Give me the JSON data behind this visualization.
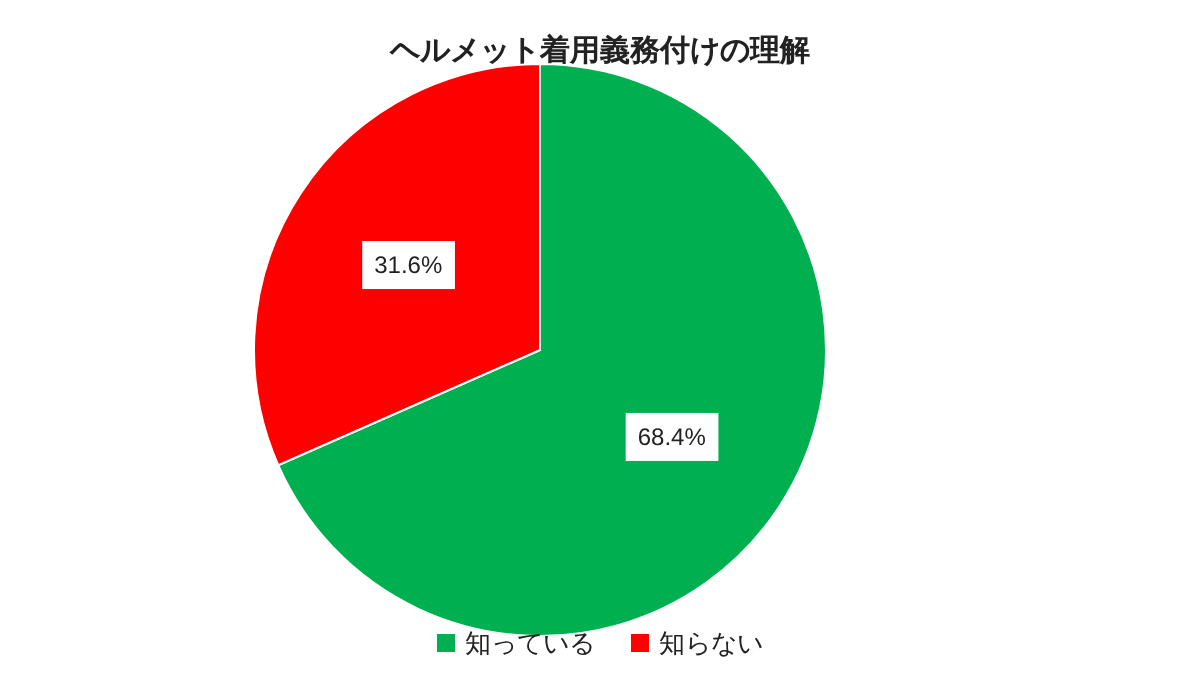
{
  "chart_data": {
    "type": "pie",
    "title": "ヘルメット着用義務付けの理解",
    "categories": [
      "知っている",
      "知らない"
    ],
    "values": [
      68.4,
      31.6
    ],
    "value_labels": [
      "68.4%",
      "31.6%"
    ],
    "colors": [
      "#00b050",
      "#ff0000"
    ],
    "legend": "bottom"
  }
}
